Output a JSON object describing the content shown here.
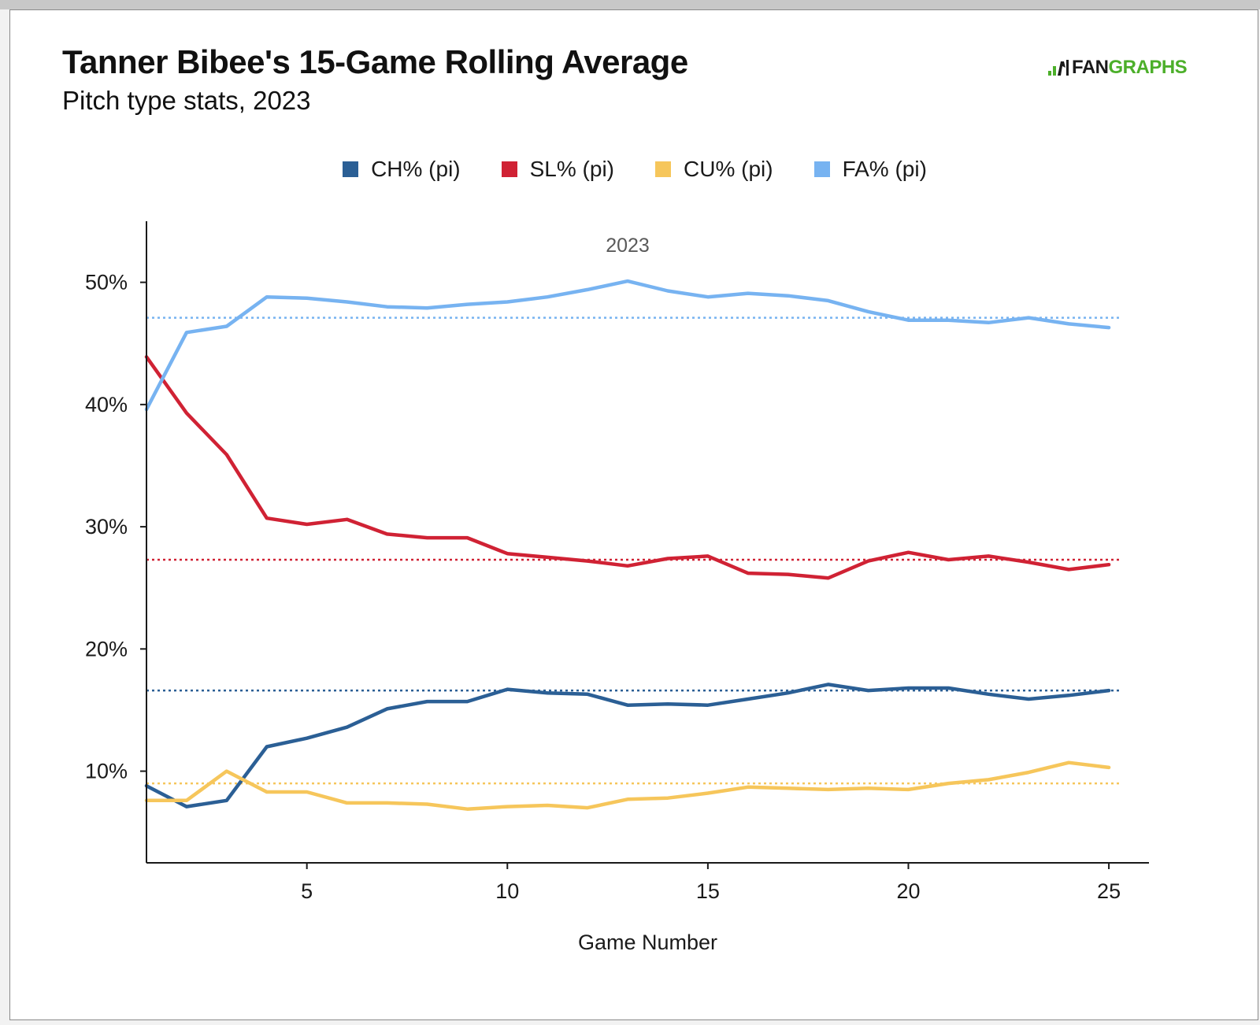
{
  "header": {
    "title": "Tanner Bibee's 15-Game Rolling Average",
    "subtitle": "Pitch type stats, 2023",
    "logo_left": "FAN",
    "logo_right": "GRAPHS"
  },
  "chart_data": {
    "type": "line",
    "title": "Tanner Bibee's 15-Game Rolling Average",
    "subtitle": "Pitch type stats, 2023",
    "xlabel": "Game Number",
    "ylabel": "",
    "xlim": [
      1,
      26
    ],
    "ylim": [
      2.5,
      55
    ],
    "xticks": [
      5,
      10,
      15,
      20,
      25
    ],
    "yticks": [
      10,
      20,
      30,
      40,
      50
    ],
    "ytick_labels": [
      "10%",
      "20%",
      "30%",
      "40%",
      "50%"
    ],
    "legend_position": "top",
    "annotation": {
      "text": "2023",
      "x": 13,
      "y": 53
    },
    "x": [
      1,
      2,
      3,
      4,
      5,
      6,
      7,
      8,
      9,
      10,
      11,
      12,
      13,
      14,
      15,
      16,
      17,
      18,
      19,
      20,
      21,
      22,
      23,
      24,
      25
    ],
    "series": [
      {
        "name": "CH% (pi)",
        "color": "#2b5f95",
        "average": 16.6,
        "values": [
          8.8,
          7.1,
          7.6,
          12.0,
          12.7,
          13.6,
          15.1,
          15.7,
          15.7,
          16.7,
          16.4,
          16.3,
          15.4,
          15.5,
          15.4,
          15.9,
          16.4,
          17.1,
          16.6,
          16.8,
          16.8,
          16.3,
          15.9,
          16.2,
          16.6
        ]
      },
      {
        "name": "SL% (pi)",
        "color": "#d02234",
        "average": 27.3,
        "values": [
          43.9,
          39.3,
          35.9,
          30.7,
          30.2,
          30.6,
          29.4,
          29.1,
          29.1,
          27.8,
          27.5,
          27.2,
          26.8,
          27.4,
          27.6,
          26.2,
          26.1,
          25.8,
          27.2,
          27.9,
          27.3,
          27.6,
          27.1,
          26.5,
          26.9
        ]
      },
      {
        "name": "CU% (pi)",
        "color": "#f6c65b",
        "average": 9.0,
        "values": [
          7.6,
          7.6,
          10.0,
          8.3,
          8.3,
          7.4,
          7.4,
          7.3,
          6.9,
          7.1,
          7.2,
          7.0,
          7.7,
          7.8,
          8.2,
          8.7,
          8.6,
          8.5,
          8.6,
          8.5,
          9.0,
          9.3,
          9.9,
          10.7,
          10.3
        ]
      },
      {
        "name": "FA% (pi)",
        "color": "#77b3f1",
        "average": 47.1,
        "values": [
          39.6,
          45.9,
          46.4,
          48.8,
          48.7,
          48.4,
          48.0,
          47.9,
          48.2,
          48.4,
          48.8,
          49.4,
          50.1,
          49.3,
          48.8,
          49.1,
          48.9,
          48.5,
          47.6,
          46.9,
          46.9,
          46.7,
          47.1,
          46.6,
          46.3
        ]
      }
    ]
  }
}
